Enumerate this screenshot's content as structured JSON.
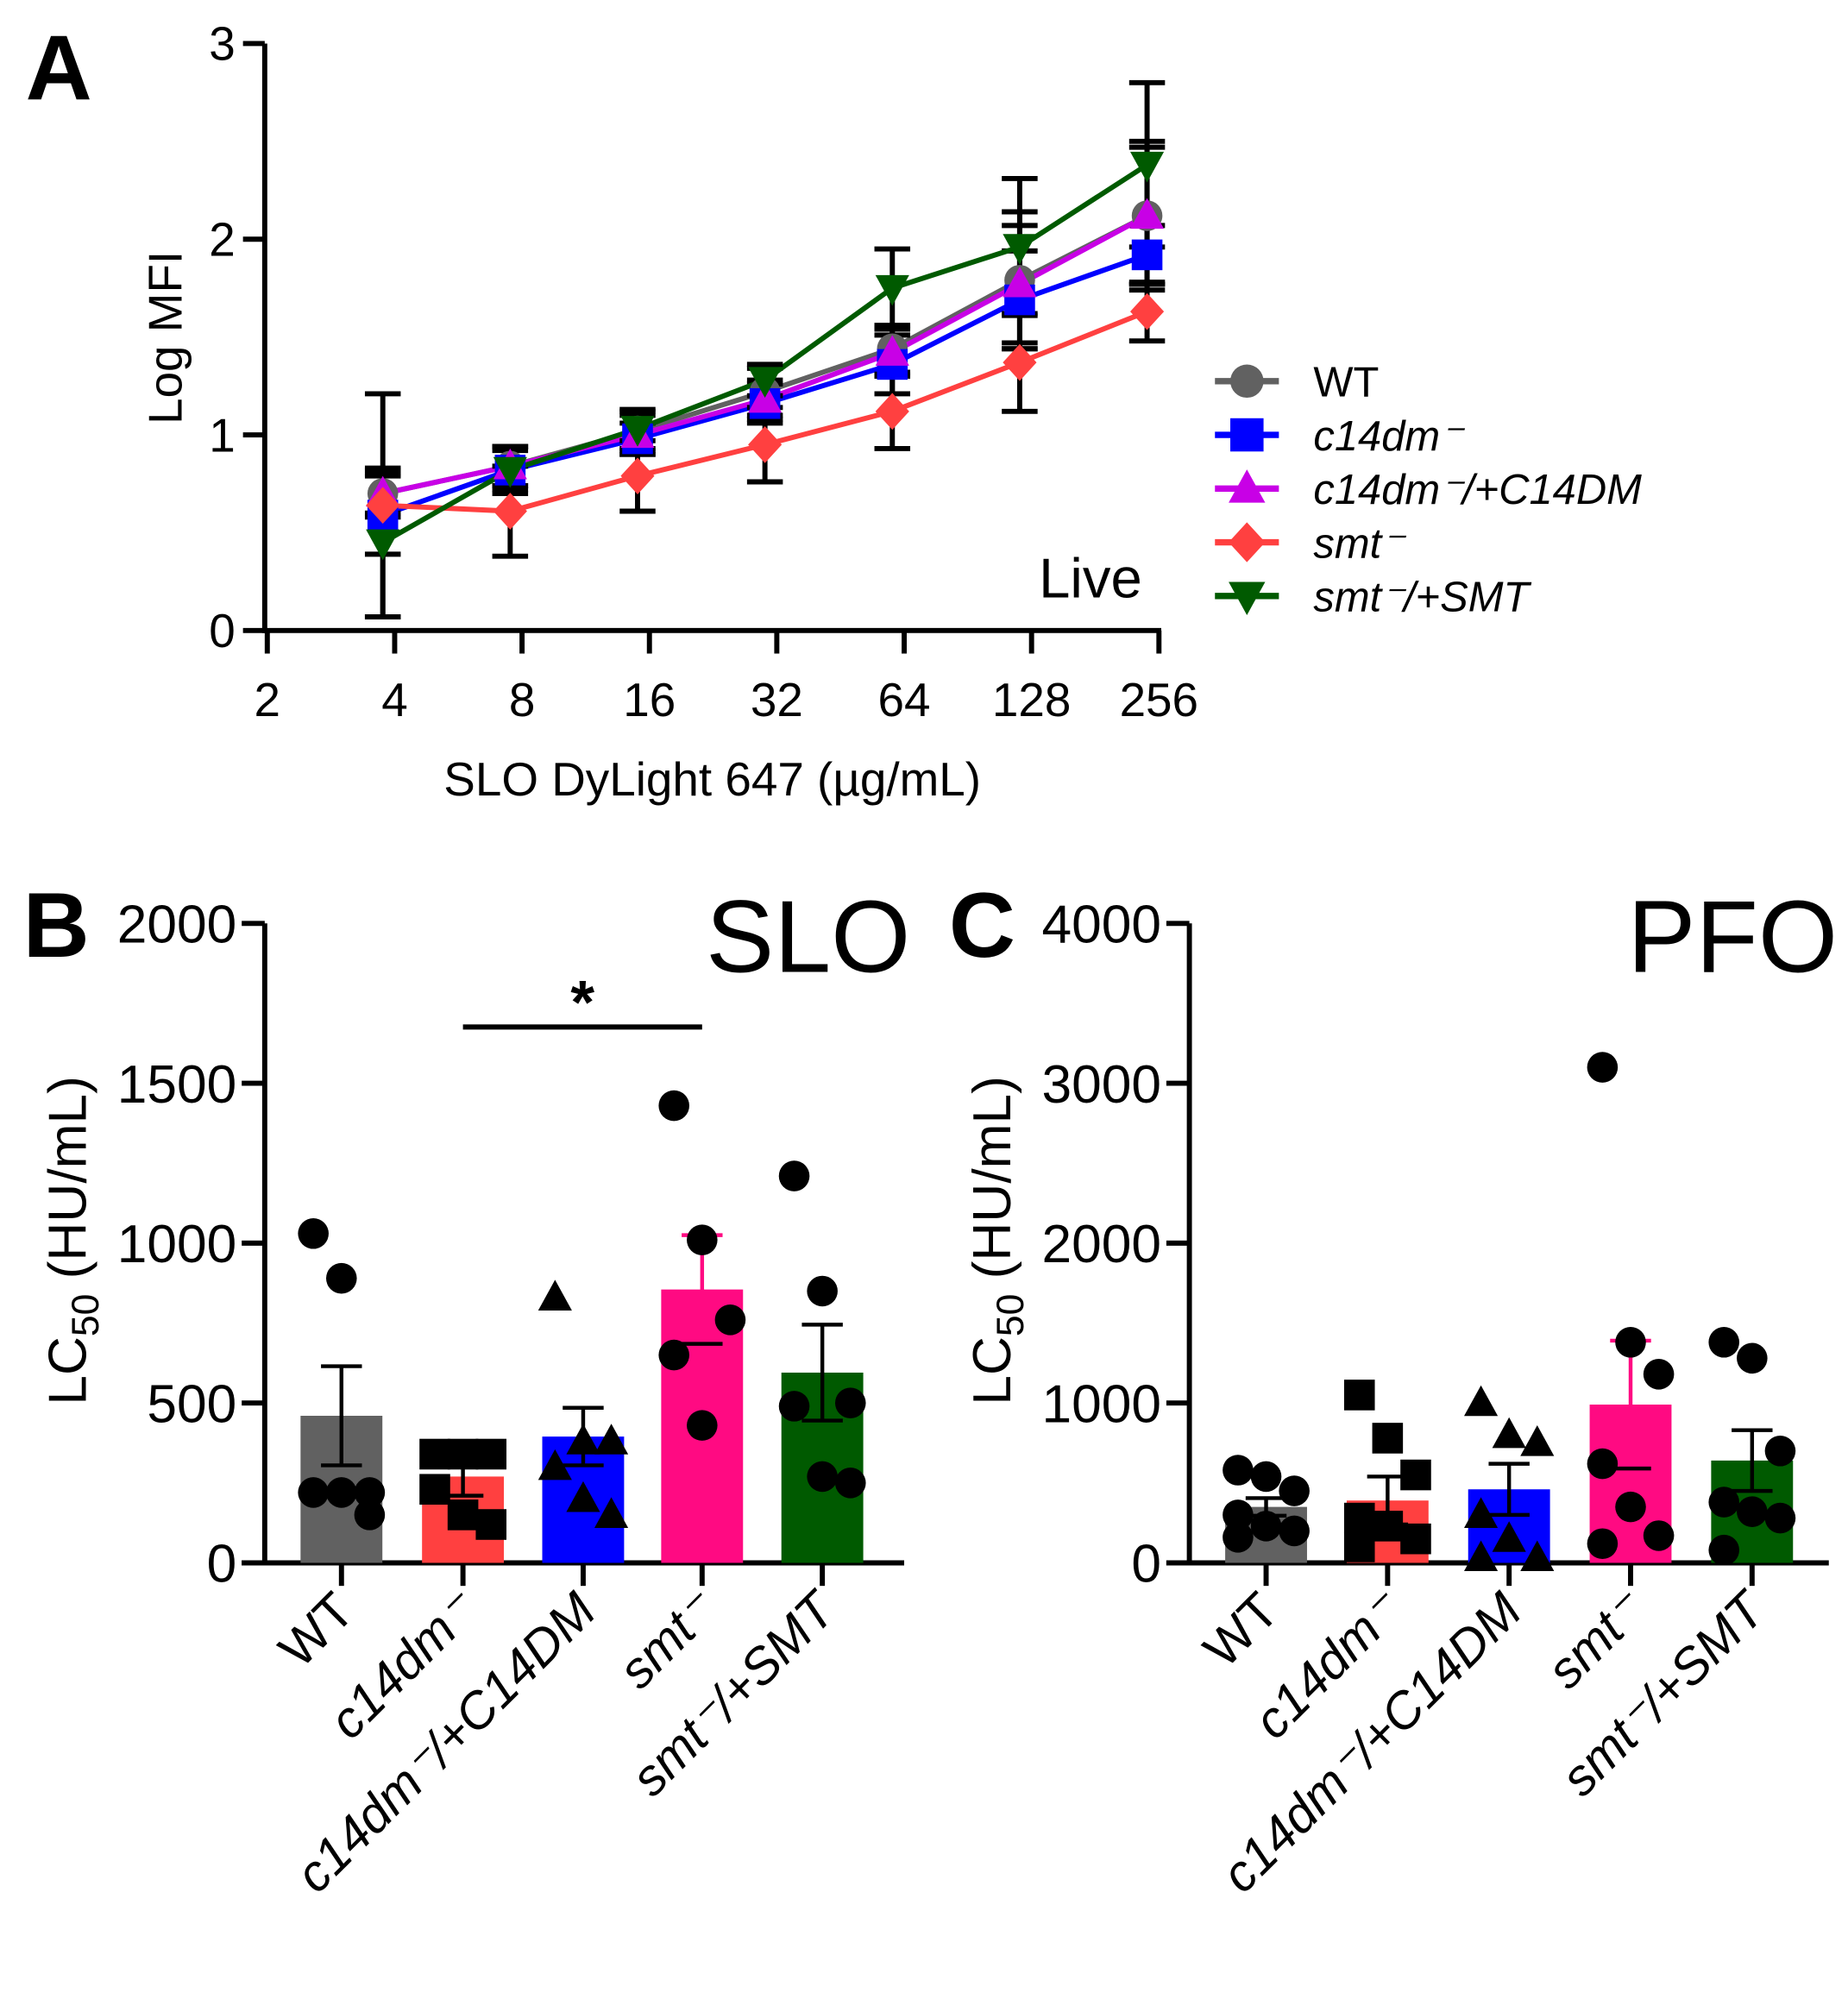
{
  "chart_data": [
    {
      "panel": "A",
      "type": "line",
      "xlabel": "SLO DyLight 647 (µg/mL)",
      "ylabel": "Log MFI",
      "annotation": "Live",
      "x_scale": "log2",
      "xlim": [
        2,
        256
      ],
      "ylim": [
        0,
        3
      ],
      "x_ticks": [
        "2",
        "4",
        "8",
        "16",
        "32",
        "64",
        "128",
        "256"
      ],
      "y_ticks": [
        "0",
        "1",
        "2",
        "3"
      ],
      "x": [
        3.75,
        7.5,
        15,
        30,
        60,
        120,
        240
      ],
      "legend_position": "right",
      "series": [
        {
          "name": "WT",
          "marker": "circle",
          "color": "#616161",
          "values": [
            0.7,
            0.84,
            1.02,
            1.22,
            1.44,
            1.79,
            2.12
          ],
          "error": [
            0.12,
            0.1,
            0.1,
            0.12,
            0.12,
            0.35,
            0.38
          ]
        },
        {
          "name": "c14dm⁻",
          "marker": "square",
          "color": "#0000ff",
          "values": [
            0.59,
            0.82,
            0.98,
            1.16,
            1.36,
            1.69,
            1.92
          ],
          "error": [
            0.2,
            0.1,
            0.08,
            0.1,
            0.15,
            0.25,
            0.15
          ]
        },
        {
          "name": "c14dm⁻/+C14DM",
          "marker": "triangle-up",
          "color": "#c800e6",
          "values": [
            0.7,
            0.84,
            1.0,
            1.18,
            1.42,
            1.77,
            2.12
          ],
          "error": [
            0.1,
            0.1,
            0.1,
            0.1,
            0.12,
            0.3,
            0.35
          ]
        },
        {
          "name": "smt⁻",
          "marker": "diamond",
          "color": "#ff4040",
          "values": [
            0.64,
            0.61,
            0.79,
            0.95,
            1.12,
            1.37,
            1.63
          ],
          "error": [
            0.57,
            0.23,
            0.18,
            0.19,
            0.19,
            0.25,
            0.15
          ]
        },
        {
          "name": "smt⁻/+SMT",
          "marker": "triangle-down",
          "color": "#005a00",
          "values": [
            0.45,
            0.82,
            1.03,
            1.28,
            1.75,
            1.96,
            2.38
          ],
          "error": [
            0.38,
            0.12,
            0.1,
            0.08,
            0.2,
            0.35,
            0.42
          ]
        }
      ]
    },
    {
      "panel": "B",
      "type": "bar",
      "title": "SLO",
      "ylabel_main": "LC",
      "ylabel_sub": "50",
      "ylabel_rest": " (HU/mL)",
      "ylim": [
        0,
        2000
      ],
      "y_ticks": [
        "0",
        "500",
        "1000",
        "1500",
        "2000"
      ],
      "categories": [
        "WT",
        "c14dm⁻",
        "c14dm⁻/+C14DM",
        "smt⁻",
        "smt⁻/+SMT"
      ],
      "colors": [
        "#616161",
        "#ff4040",
        "#0000ff",
        "#ff0a82",
        "#005a00"
      ],
      "markers": [
        "circle",
        "square",
        "triangle-up",
        "circle",
        "circle"
      ],
      "values": [
        460,
        270,
        395,
        855,
        595
      ],
      "sem": [
        155,
        60,
        90,
        170,
        150
      ],
      "points": [
        [
          1030,
          890,
          220,
          220,
          220,
          150
        ],
        [
          340,
          340,
          340,
          230,
          150,
          120
        ],
        [
          830,
          380,
          380,
          300,
          200,
          150
        ],
        [
          1430,
          1010,
          760,
          650,
          430
        ],
        [
          1210,
          850,
          500,
          490,
          270,
          250
        ]
      ],
      "significance": {
        "from": 1,
        "to": 3,
        "label": "*"
      }
    },
    {
      "panel": "C",
      "type": "bar",
      "title": "PFO",
      "ylabel_main": "LC",
      "ylabel_sub": "50",
      "ylabel_rest": " (HU/mL)",
      "ylim": [
        0,
        4000
      ],
      "y_ticks": [
        "0",
        "1000",
        "2000",
        "3000",
        "4000"
      ],
      "categories": [
        "WT",
        "c14dm⁻",
        "c14dm⁻/+C14DM",
        "smt⁻",
        "smt⁻/+SMT"
      ],
      "colors": [
        "#616161",
        "#ff4040",
        "#0000ff",
        "#ff0a82",
        "#005a00"
      ],
      "markers": [
        "circle",
        "square",
        "triangle-up",
        "circle",
        "circle"
      ],
      "values": [
        350,
        390,
        460,
        990,
        640
      ],
      "sem": [
        55,
        150,
        160,
        400,
        190
      ],
      "points": [
        [
          580,
          540,
          450,
          300,
          230,
          200,
          160
        ],
        [
          1050,
          780,
          550,
          280,
          230,
          150,
          100
        ],
        [
          1000,
          800,
          750,
          300,
          150,
          30,
          30
        ],
        [
          3100,
          1380,
          1180,
          620,
          350,
          170,
          120
        ],
        [
          1380,
          1280,
          700,
          380,
          320,
          280,
          80
        ]
      ]
    }
  ],
  "panel_labels": [
    "A",
    "B",
    "C"
  ]
}
